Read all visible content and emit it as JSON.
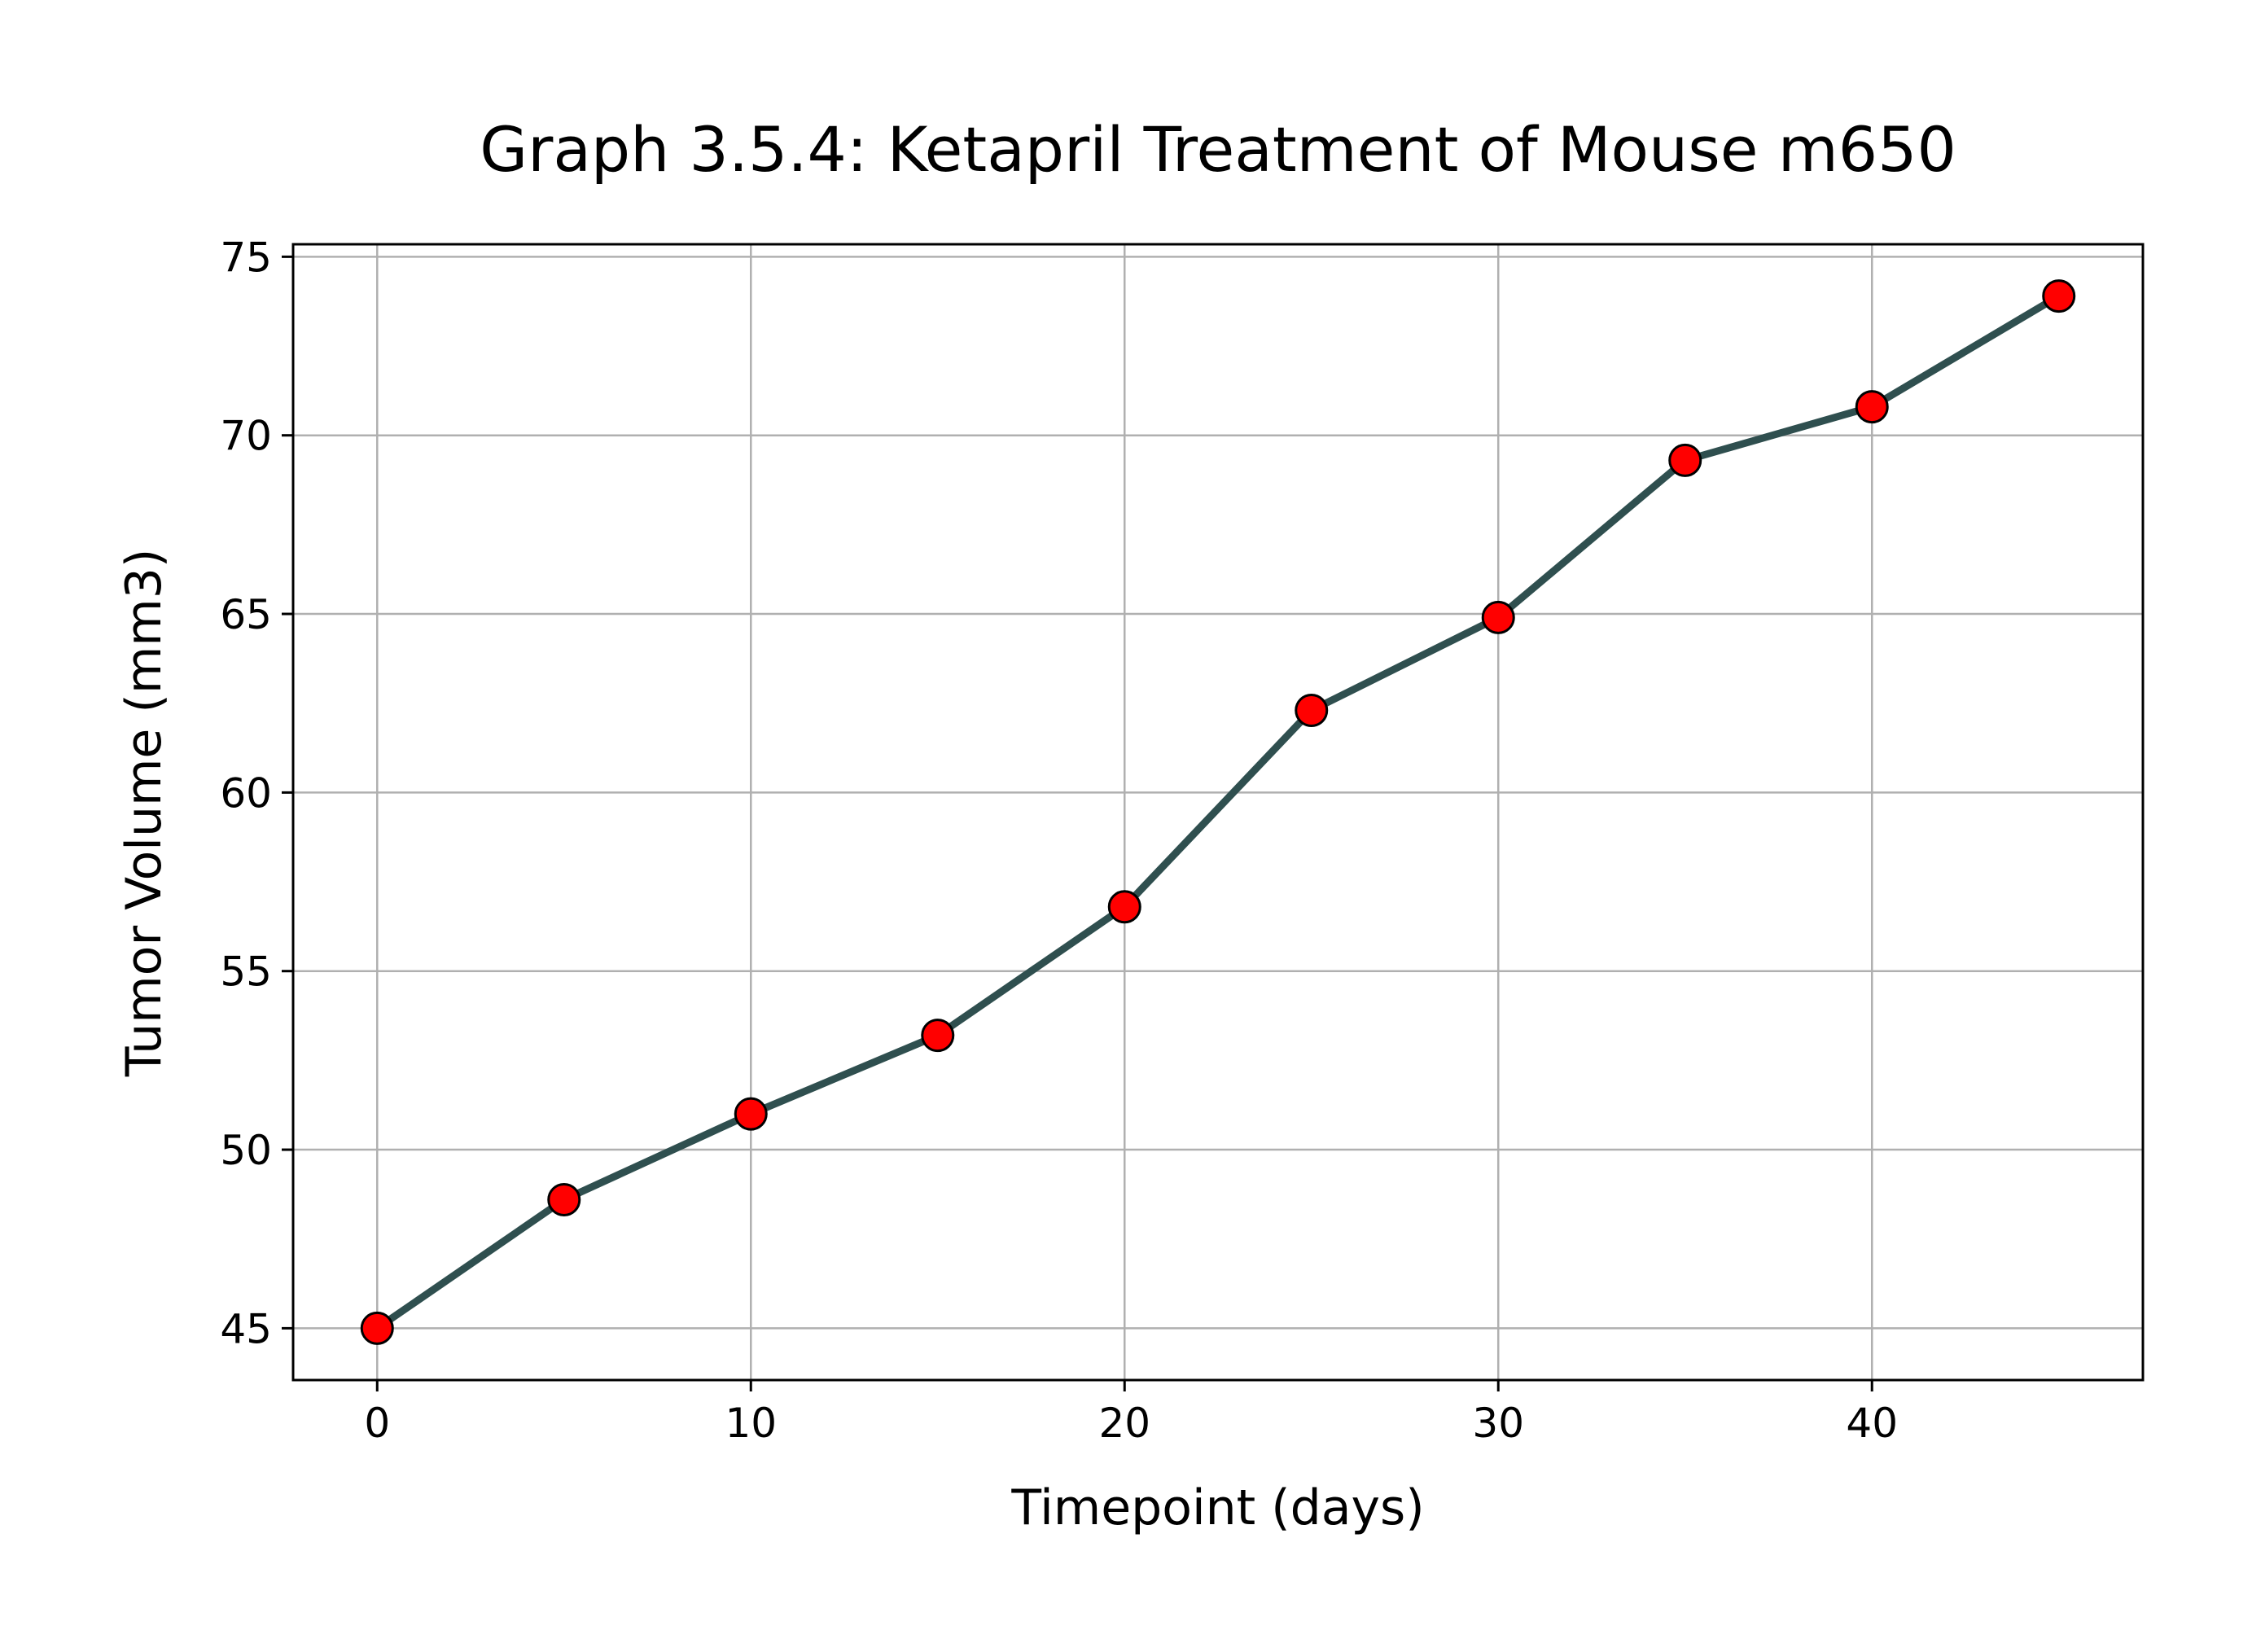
{
  "chart_data": {
    "type": "line",
    "title": "Graph 3.5.4: Ketapril Treatment of Mouse m650",
    "xlabel": "Timepoint (days)",
    "ylabel": "Tumor Volume (mm3)",
    "x": [
      0,
      5,
      10,
      15,
      20,
      25,
      30,
      35,
      40,
      45
    ],
    "series": [
      {
        "values": [
          45.0,
          48.6,
          51.0,
          53.2,
          56.8,
          62.3,
          64.9,
          69.3,
          70.8,
          73.9
        ]
      }
    ],
    "xlim": [
      -2.25,
      47.25
    ],
    "ylim": [
      43.55,
      75.35
    ],
    "xticks": [
      0,
      10,
      20,
      30,
      40
    ],
    "yticks": [
      45,
      50,
      55,
      60,
      65,
      70,
      75
    ],
    "xtick_labels": [
      "0",
      "10",
      "20",
      "30",
      "40"
    ],
    "ytick_labels": [
      "45",
      "50",
      "55",
      "60",
      "65",
      "70",
      "75"
    ],
    "grid": true,
    "colors": {
      "line": "#2f4f4f",
      "marker_fill": "#ff0000",
      "marker_edge": "#000000",
      "grid": "#b0b0b0",
      "axes": "#000000"
    }
  }
}
